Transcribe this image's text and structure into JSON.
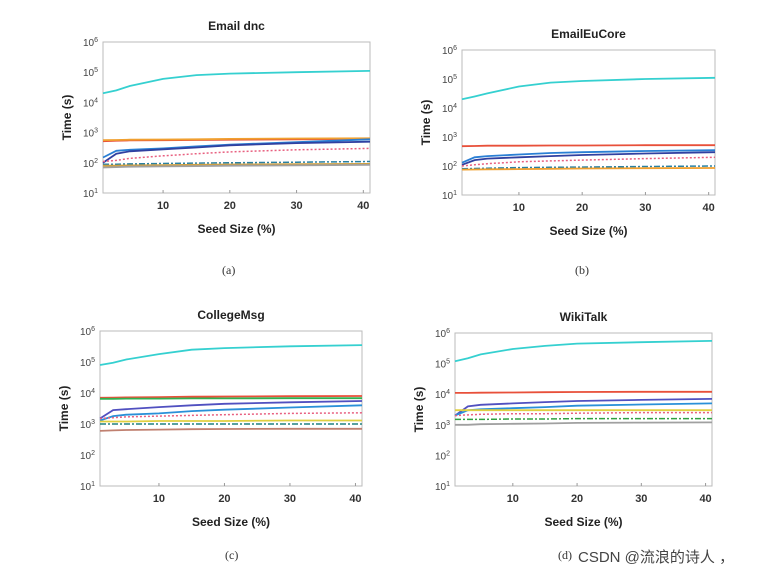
{
  "chart_data": [
    {
      "type": "line",
      "title": "Email dnc",
      "xlabel": "Seed Size (%)",
      "ylabel": "Time (s)",
      "caption": "(a)",
      "yscale": "log",
      "ylim": [
        10,
        1000000
      ],
      "xlim": [
        1,
        41
      ],
      "xticks": [
        10,
        20,
        30,
        40
      ],
      "yticks": [
        "10^1",
        "10^2",
        "10^3",
        "10^4",
        "10^5",
        "10^6"
      ],
      "x": [
        1,
        3,
        5,
        10,
        15,
        20,
        30,
        41
      ],
      "series": [
        {
          "color": "#35d0d0",
          "style": "solid",
          "values": [
            20000,
            25000,
            35000,
            60000,
            80000,
            90000,
            100000,
            110000
          ]
        },
        {
          "color": "#e8503a",
          "style": "solid",
          "values": [
            520,
            540,
            550,
            560,
            570,
            580,
            600,
            620
          ]
        },
        {
          "color": "#f0a030",
          "style": "solid",
          "values": [
            560,
            570,
            580,
            590,
            600,
            620,
            640,
            650
          ]
        },
        {
          "color": "#2a7fd4",
          "style": "solid",
          "values": [
            150,
            250,
            270,
            300,
            350,
            400,
            480,
            600
          ]
        },
        {
          "color": "#3040a0",
          "style": "solid",
          "values": [
            100,
            200,
            240,
            280,
            320,
            380,
            450,
            500
          ]
        },
        {
          "color": "#e86080",
          "style": "dotted",
          "values": [
            110,
            120,
            140,
            170,
            200,
            230,
            270,
            300
          ]
        },
        {
          "color": "#2a80a0",
          "style": "dashdot",
          "values": [
            90,
            90,
            92,
            95,
            98,
            100,
            105,
            110
          ]
        },
        {
          "color": "#d0a040",
          "style": "solid",
          "values": [
            80,
            80,
            82,
            84,
            86,
            88,
            90,
            92
          ]
        },
        {
          "color": "#a0a0a0",
          "style": "solid",
          "values": [
            70,
            72,
            74,
            76,
            78,
            80,
            82,
            85
          ]
        }
      ]
    },
    {
      "type": "line",
      "title": "EmailEuCore",
      "xlabel": "Seed Size (%)",
      "ylabel": "Time (s)",
      "caption": "(b)",
      "yscale": "log",
      "ylim": [
        10,
        1000000
      ],
      "xlim": [
        1,
        41
      ],
      "xticks": [
        10,
        20,
        30,
        40
      ],
      "yticks": [
        "10^1",
        "10^2",
        "10^3",
        "10^4",
        "10^5",
        "10^6"
      ],
      "x": [
        1,
        3,
        5,
        10,
        15,
        20,
        30,
        41
      ],
      "series": [
        {
          "color": "#35d0d0",
          "style": "solid",
          "values": [
            20000,
            25000,
            32000,
            55000,
            75000,
            85000,
            100000,
            110000
          ]
        },
        {
          "color": "#e8503a",
          "style": "solid",
          "values": [
            480,
            490,
            500,
            500,
            510,
            510,
            520,
            520
          ]
        },
        {
          "color": "#2a7fd4",
          "style": "solid",
          "values": [
            130,
            200,
            220,
            250,
            280,
            300,
            330,
            350
          ]
        },
        {
          "color": "#3040a0",
          "style": "solid",
          "values": [
            110,
            160,
            180,
            200,
            220,
            240,
            270,
            300
          ]
        },
        {
          "color": "#e86080",
          "style": "dotted",
          "values": [
            100,
            110,
            120,
            140,
            150,
            160,
            180,
            200
          ]
        },
        {
          "color": "#2a80a0",
          "style": "dashdot",
          "values": [
            80,
            82,
            84,
            88,
            90,
            92,
            96,
            100
          ]
        },
        {
          "color": "#f0a030",
          "style": "solid",
          "values": [
            75,
            76,
            77,
            78,
            80,
            82,
            84,
            85
          ]
        }
      ]
    },
    {
      "type": "line",
      "title": "CollegeMsg",
      "xlabel": "Seed Size (%)",
      "ylabel": "Time (s)",
      "caption": "(c)",
      "yscale": "log",
      "ylim": [
        10,
        1000000
      ],
      "xlim": [
        1,
        41
      ],
      "xticks": [
        10,
        20,
        30,
        40
      ],
      "yticks": [
        "10^1",
        "10^2",
        "10^3",
        "10^4",
        "10^5",
        "10^6"
      ],
      "x": [
        1,
        3,
        5,
        10,
        15,
        20,
        30,
        41
      ],
      "series": [
        {
          "color": "#35d0d0",
          "style": "solid",
          "values": [
            80000,
            95000,
            120000,
            180000,
            250000,
            280000,
            320000,
            350000
          ]
        },
        {
          "color": "#e8503a",
          "style": "solid",
          "values": [
            7000,
            7100,
            7200,
            7400,
            7600,
            7700,
            7900,
            8000
          ]
        },
        {
          "color": "#30b050",
          "style": "solid",
          "values": [
            6500,
            6500,
            6600,
            6600,
            6700,
            6700,
            6800,
            6800
          ]
        },
        {
          "color": "#5050c0",
          "style": "solid",
          "values": [
            1500,
            2800,
            3000,
            3500,
            4000,
            4500,
            5000,
            5500
          ]
        },
        {
          "color": "#2a90d8",
          "style": "solid",
          "values": [
            1300,
            1800,
            2000,
            2200,
            2600,
            2900,
            3400,
            4000
          ]
        },
        {
          "color": "#e86080",
          "style": "dotted",
          "values": [
            1500,
            1600,
            1700,
            1800,
            1900,
            2000,
            2200,
            2300
          ]
        },
        {
          "color": "#e0d040",
          "style": "solid",
          "values": [
            1200,
            1200,
            1200,
            1250,
            1250,
            1250,
            1300,
            1300
          ]
        },
        {
          "color": "#208080",
          "style": "dashdot",
          "values": [
            1000,
            1000,
            1000,
            1000,
            1000,
            1000,
            1000,
            1000
          ]
        },
        {
          "color": "#c08070",
          "style": "solid",
          "values": [
            600,
            620,
            640,
            660,
            680,
            690,
            700,
            700
          ]
        }
      ]
    },
    {
      "type": "line",
      "title": "WikiTalk",
      "xlabel": "Seed Size (%)",
      "ylabel": "Time (s)",
      "caption": "(d)",
      "yscale": "log",
      "ylim": [
        10,
        1000000
      ],
      "xlim": [
        1,
        41
      ],
      "xticks": [
        10,
        20,
        30,
        40
      ],
      "yticks": [
        "10^1",
        "10^2",
        "10^3",
        "10^4",
        "10^5",
        "10^6"
      ],
      "x": [
        1,
        3,
        5,
        10,
        15,
        20,
        30,
        41
      ],
      "series": [
        {
          "color": "#35d0d0",
          "style": "solid",
          "values": [
            120000,
            150000,
            200000,
            300000,
            380000,
            450000,
            500000,
            550000
          ]
        },
        {
          "color": "#e8503a",
          "style": "solid",
          "values": [
            11000,
            11000,
            11200,
            11400,
            11600,
            11800,
            12000,
            12000
          ]
        },
        {
          "color": "#5050c0",
          "style": "solid",
          "values": [
            2000,
            4000,
            4500,
            5000,
            5500,
            6000,
            6500,
            7000
          ]
        },
        {
          "color": "#2a90d8",
          "style": "solid",
          "values": [
            2000,
            3000,
            3200,
            3500,
            3800,
            4200,
            4600,
            5000
          ]
        },
        {
          "color": "#e0d040",
          "style": "solid",
          "values": [
            3000,
            3000,
            3000,
            3000,
            3000,
            3000,
            3000,
            3000
          ]
        },
        {
          "color": "#e86080",
          "style": "dotted",
          "values": [
            2000,
            2100,
            2200,
            2300,
            2300,
            2400,
            2500,
            2500
          ]
        },
        {
          "color": "#30a040",
          "style": "dashdot",
          "values": [
            1500,
            1500,
            1500,
            1550,
            1550,
            1600,
            1600,
            1600
          ]
        },
        {
          "color": "#a0a0a0",
          "style": "solid",
          "values": [
            1000,
            1000,
            1050,
            1080,
            1100,
            1150,
            1180,
            1200
          ]
        }
      ]
    }
  ],
  "watermark": "CSDN @流浪的诗人 ，"
}
